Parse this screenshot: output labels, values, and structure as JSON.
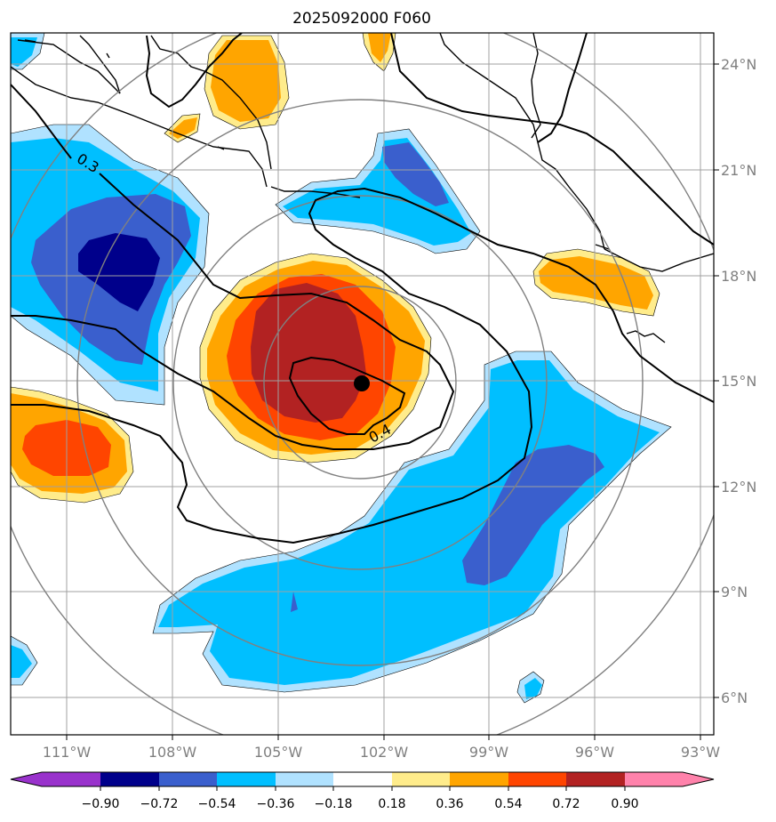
{
  "title": "2025092000 F060",
  "lat_ticks": [
    "24°N",
    "21°N",
    "18°N",
    "15°N",
    "12°N",
    "9°N",
    "6°N"
  ],
  "lon_ticks": [
    "111°W",
    "108°W",
    "105°W",
    "102°W",
    "99°W",
    "96°W",
    "93°W"
  ],
  "contour_labels": [
    "0.3",
    "0.4"
  ],
  "colorbar": {
    "ticks": [
      "−0.90",
      "−0.72",
      "−0.54",
      "−0.36",
      "−0.18",
      "0.18",
      "0.36",
      "0.54",
      "0.72",
      "0.90"
    ],
    "colors": [
      "#9932cc",
      "#00008b",
      "#3a5fcd",
      "#00bfff",
      "#b0e2ff",
      "#ffffff",
      "#ffec8b",
      "#ffa500",
      "#ff4500",
      "#b22222",
      "#ff82ab"
    ]
  },
  "colors": {
    "darkred": "#b22222",
    "orangered": "#ff4500",
    "orange": "#ffa500",
    "lightyellow": "#ffec8b",
    "deepskyblue": "#00bfff",
    "lightblue": "#b0e2ff",
    "royalblue": "#3a5fcd",
    "navy": "#00008b",
    "grid": "#a0a0a0",
    "rings": "#808080"
  },
  "storm_center": {
    "lon": "102.6°W",
    "lat": "14.9°N",
    "marker": "black-dot"
  }
}
